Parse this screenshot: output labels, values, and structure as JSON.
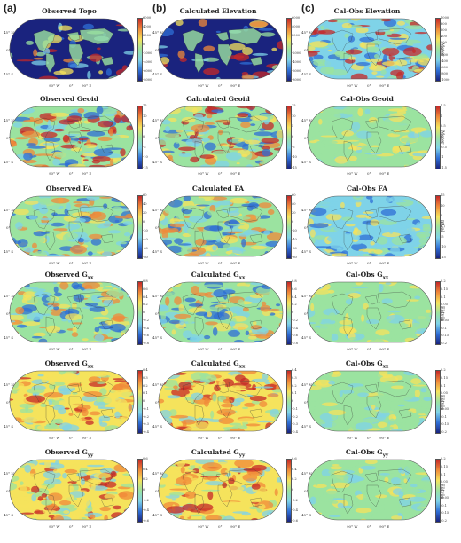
{
  "figure": {
    "col_labels": [
      "(a)",
      "(b)",
      "(c)"
    ],
    "lat_labels": [
      "45° N",
      "0°",
      "45° S"
    ],
    "lon_labels": [
      "90° W",
      "0°",
      "90° E"
    ]
  },
  "colors": {
    "deep_blue": "#1a237e",
    "blue": "#2f6fd6",
    "light_blue": "#7fd3e8",
    "neutral": "#9be3a0",
    "yellow": "#f5e35c",
    "orange": "#f0893a",
    "red": "#c62828"
  },
  "rows": [
    {
      "panels": [
        {
          "title": "Observed Topo",
          "sub": "",
          "style": "topo",
          "ticks": [
            "6000",
            "4000",
            "2000",
            "0",
            "-2000",
            "-4000",
            "-6000",
            "-8000"
          ],
          "unit": ""
        },
        {
          "title": "Calculated Elevation",
          "sub": "",
          "style": "topo",
          "ticks": [
            "6000",
            "4000",
            "2000",
            "0",
            "-2000",
            "-4000",
            "-6000",
            "-8000"
          ],
          "unit": ""
        },
        {
          "title": "Cal-Obs Elevation",
          "sub": "",
          "style": "diff",
          "ticks": [
            "1000",
            "800",
            "600",
            "400",
            "200",
            "0",
            "-200",
            "-400",
            "-600",
            "-800",
            "-1000"
          ],
          "unit": "Meter"
        }
      ]
    },
    {
      "panels": [
        {
          "title": "Observed Geoid",
          "sub": "",
          "style": "geoid",
          "ticks": [
            "15",
            "10",
            "5",
            "0",
            "-5",
            "-10",
            "-15"
          ],
          "unit": ""
        },
        {
          "title": "Calculated Geoid",
          "sub": "",
          "style": "geoid",
          "ticks": [
            "15",
            "10",
            "5",
            "0",
            "-5",
            "-10",
            "-15"
          ],
          "unit": ""
        },
        {
          "title": "Cal-Obs Geoid",
          "sub": "",
          "style": "diffsoft",
          "ticks": [
            "1.5",
            "1",
            "0.5",
            "0",
            "-0.5",
            "-1",
            "-1.5"
          ],
          "unit": "Meter"
        }
      ]
    },
    {
      "panels": [
        {
          "title": "Observed FA",
          "sub": "",
          "style": "field",
          "ticks": [
            "60",
            "40",
            "20",
            "0",
            "-20",
            "-40",
            "-60",
            "-80"
          ],
          "unit": ""
        },
        {
          "title": "Calculated FA",
          "sub": "",
          "style": "field",
          "ticks": [
            "60",
            "40",
            "20",
            "0",
            "-20",
            "-40",
            "-60",
            "-80"
          ],
          "unit": ""
        },
        {
          "title": "Cal-Obs FA",
          "sub": "",
          "style": "diffblue",
          "ticks": [
            "15",
            "10",
            "5",
            "0",
            "-5",
            "-10",
            "-15"
          ],
          "unit": "mGal"
        }
      ]
    },
    {
      "panels": [
        {
          "title": "Observed G",
          "sub": "xx",
          "style": "field",
          "ticks": [
            "0.8",
            "0.6",
            "0.4",
            "0.2",
            "0",
            "-0.2",
            "-0.4",
            "-0.6",
            "-0.8"
          ],
          "unit": ""
        },
        {
          "title": "Calculated G",
          "sub": "xx",
          "style": "field",
          "ticks": [
            "0.8",
            "0.6",
            "0.4",
            "0.2",
            "0",
            "-0.2",
            "-0.4",
            "-0.6",
            "-0.8"
          ],
          "unit": ""
        },
        {
          "title": "Cal-Obs G",
          "sub": "xx",
          "style": "diffsoft",
          "ticks": [
            "0.2",
            "0.15",
            "0.1",
            "0.05",
            "0",
            "-0.05",
            "-0.1",
            "-0.15",
            "-0.2"
          ],
          "unit": "Eötvös"
        }
      ]
    },
    {
      "panels": [
        {
          "title": "Observed G",
          "sub": "xx",
          "style": "fieldwarm",
          "ticks": [
            "0.4",
            "0.3",
            "0.2",
            "0.1",
            "0",
            "-0.1",
            "-0.2",
            "-0.3",
            "-0.4"
          ],
          "unit": ""
        },
        {
          "title": "Calculated G",
          "sub": "xx",
          "style": "fieldwarm",
          "ticks": [
            "0.4",
            "0.3",
            "0.2",
            "0.1",
            "0",
            "-0.1",
            "-0.2",
            "-0.3",
            "-0.4"
          ],
          "unit": ""
        },
        {
          "title": "Cal-Obs G",
          "sub": "xx",
          "style": "diffsoft",
          "ticks": [
            "0.2",
            "0.15",
            "0.1",
            "0.05",
            "0",
            "-0.05",
            "-0.1",
            "-0.15",
            "-0.2"
          ],
          "unit": "Eötvös"
        }
      ]
    },
    {
      "panels": [
        {
          "title": "Observed G",
          "sub": "yy",
          "style": "fieldwarm",
          "ticks": [
            "0.6",
            "0.4",
            "0.2",
            "0",
            "-0.2",
            "-0.4",
            "-0.6"
          ],
          "unit": ""
        },
        {
          "title": "Calculated G",
          "sub": "yy",
          "style": "fieldwarm",
          "ticks": [
            "0.6",
            "0.4",
            "0.2",
            "0",
            "-0.2",
            "-0.4",
            "-0.6"
          ],
          "unit": ""
        },
        {
          "title": "Cal-Obs G",
          "sub": "yy",
          "style": "diffsoft",
          "ticks": [
            "0.2",
            "0.15",
            "0.1",
            "0.05",
            "0",
            "-0.05",
            "-0.1",
            "-0.15",
            "-0.2"
          ],
          "unit": "Eötvös"
        }
      ]
    }
  ]
}
